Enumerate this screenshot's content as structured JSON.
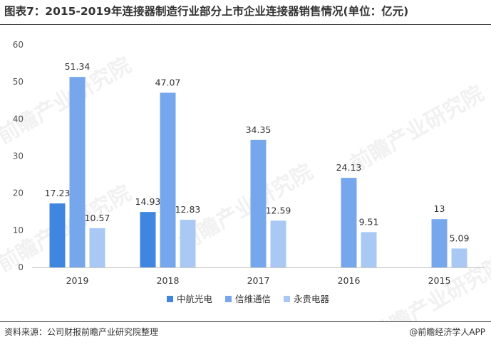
{
  "title": "图表7：2015-2019年连接器制造行业部分上市企业连接器销售情况(单位：亿元)",
  "source": "资料来源：公司财报前瞻产业研究院整理",
  "credit": "@前瞻经济学人APP",
  "watermark": "前瞻产业研究院",
  "colors": {
    "中航光电": "#3f86e0",
    "信维通信": "#76a7ec",
    "永贵电器": "#a9c9f4"
  },
  "chart_data": {
    "type": "bar",
    "title": "图表7：2015-2019年连接器制造行业部分上市企业连接器销售情况(单位：亿元)",
    "xlabel": "",
    "ylabel": "",
    "categories": [
      "2019",
      "2018",
      "2017",
      "2016",
      "2015"
    ],
    "y_ticks": [
      "0",
      "10",
      "20",
      "30",
      "40",
      "50",
      "60"
    ],
    "ylim": [
      0,
      60
    ],
    "grid": false,
    "legend_position": "bottom",
    "series": [
      {
        "name": "中航光电",
        "values": [
          17.23,
          14.93,
          null,
          null,
          null
        ],
        "labels": [
          "17.23",
          "14.93",
          "",
          "",
          ""
        ]
      },
      {
        "name": "信维通信",
        "values": [
          51.34,
          47.07,
          34.35,
          24.13,
          13
        ],
        "labels": [
          "51.34",
          "47.07",
          "34.35",
          "24.13",
          "13"
        ]
      },
      {
        "name": "永贵电器",
        "values": [
          10.57,
          12.83,
          12.59,
          9.51,
          5.09
        ],
        "labels": [
          "10.57",
          "12.83",
          "12.59",
          "9.51",
          "5.09"
        ]
      }
    ]
  }
}
